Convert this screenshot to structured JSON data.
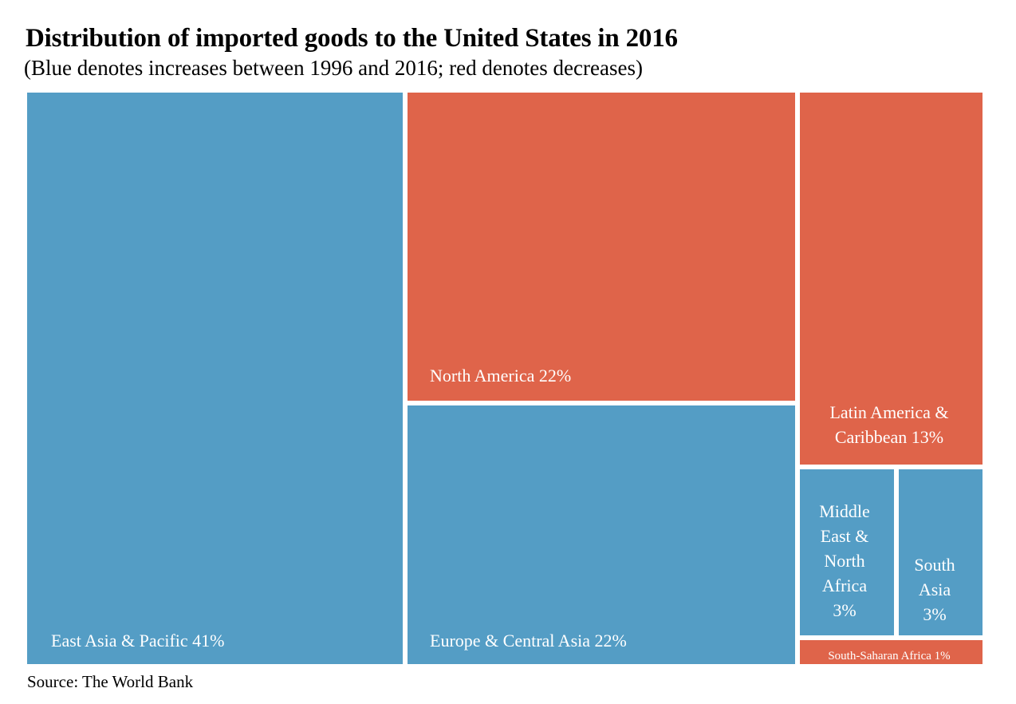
{
  "chart_data": {
    "type": "treemap",
    "title": "Distribution of imported goods to the United States in 2016",
    "subtitle": "(Blue denotes increases between 1996 and 2016; red denotes decreases)",
    "source": "Source: The World Bank",
    "colors": {
      "increase": "#549DC5",
      "decrease": "#DF644A"
    },
    "regions": [
      {
        "name": "East Asia & Pacific",
        "value": 41,
        "label": "East Asia & Pacific 41%",
        "change": "increase"
      },
      {
        "name": "North America",
        "value": 22,
        "label": "North America 22%",
        "change": "decrease"
      },
      {
        "name": "Europe & Central Asia",
        "value": 22,
        "label": "Europe & Central Asia 22%",
        "change": "increase"
      },
      {
        "name": "Latin America & Caribbean",
        "value": 13,
        "label": "Latin America & Caribbean 13%",
        "label_lines": [
          "Latin America &",
          "Caribbean 13%"
        ],
        "change": "decrease"
      },
      {
        "name": "Middle East & North Africa",
        "value": 3,
        "label": "Middle East & North Africa 3%",
        "label_lines": [
          "Middle",
          "East &",
          "North",
          "Africa",
          "3%"
        ],
        "change": "increase"
      },
      {
        "name": "South Asia",
        "value": 3,
        "label": "South Asia 3%",
        "label_lines": [
          "South",
          "Asia",
          "3%"
        ],
        "change": "increase"
      },
      {
        "name": "South-Saharan Africa",
        "value": 1,
        "label": "South-Saharan Africa 1%",
        "change": "decrease"
      }
    ]
  }
}
